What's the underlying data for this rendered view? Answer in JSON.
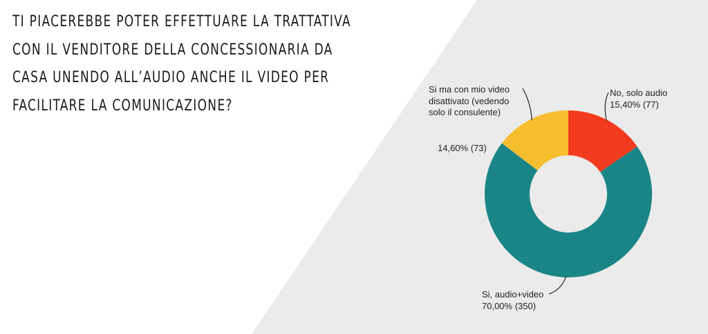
{
  "question": {
    "title": "TI PIACEREBBE POTER EFFETTUARE LA TRATTATIVA\nCON IL VENDITORE DELLA CONCESSIONARIA DA\nCASA UNENDO ALL’AUDIO ANCHE IL VIDEO PER\nFACILITARE LA COMUNICAZIONE?"
  },
  "colors": {
    "background_right": "#ebebeb",
    "background_left": "#ffffff",
    "title_text": "#1a1a1a"
  },
  "chart_data": {
    "type": "pie",
    "subtype": "donut",
    "title": "",
    "slices": [
      {
        "name": "No, solo audio",
        "percent_label": "15,40% (77)",
        "value": 15.4,
        "count": 77,
        "color": "#f23b1e"
      },
      {
        "name": "Si, audio+video",
        "percent_label": "70,00% (350)",
        "value": 70.0,
        "count": 350,
        "color": "#1a8587"
      },
      {
        "name": "Si ma con mio video disattivato (vedendo solo il consulente)",
        "percent_label": "14,60% (73)",
        "value": 14.6,
        "count": 73,
        "color": "#f6bd2e"
      }
    ]
  }
}
